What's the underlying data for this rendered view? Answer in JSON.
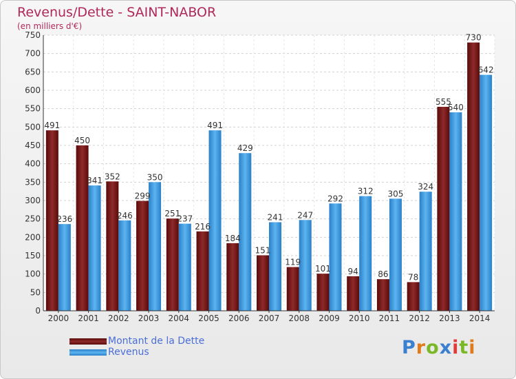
{
  "header": {
    "title": "Revenus/Dette - SAINT-NABOR",
    "subtitle": "(en milliers d'€)"
  },
  "legend": {
    "items": [
      {
        "label": "Montant de la Dette",
        "color": "#7a1010"
      },
      {
        "label": "Revenus",
        "color": "#3a9ae0"
      }
    ]
  },
  "logo": {
    "text": "Proxiti"
  },
  "chart_data": {
    "type": "bar",
    "title": "Revenus/Dette - SAINT-NABOR",
    "ylabel": "(en milliers d'€)",
    "ylim": [
      0,
      750
    ],
    "yticks": [
      0,
      50,
      100,
      150,
      200,
      250,
      300,
      350,
      400,
      450,
      500,
      550,
      600,
      650,
      700,
      750
    ],
    "grid": true,
    "legend_position": "bottom-left",
    "categories": [
      "2000",
      "2001",
      "2002",
      "2003",
      "2004",
      "2005",
      "2006",
      "2007",
      "2008",
      "2009",
      "2010",
      "2011",
      "2012",
      "2013",
      "2014"
    ],
    "series": [
      {
        "name": "Montant de la Dette",
        "color": "#7a1010",
        "values": [
          491,
          450,
          352,
          299,
          251,
          216,
          184,
          151,
          119,
          101,
          94,
          86,
          78,
          555,
          730
        ],
        "labels": [
          "491",
          "450",
          "352",
          "299",
          "251",
          "216",
          "184",
          "151",
          "119",
          "101",
          "94",
          "86",
          "78",
          "555",
          "730"
        ]
      },
      {
        "name": "Revenus",
        "color": "#3a9ae0",
        "values": [
          236,
          341,
          246,
          350,
          237,
          491,
          429,
          241,
          247,
          292,
          312,
          305,
          324,
          540,
          642
        ],
        "labels": [
          "236",
          "341",
          "246",
          "350",
          "237",
          "491",
          "429",
          "241",
          "247",
          "292",
          "312",
          "305",
          "324",
          "540",
          "642"
        ]
      }
    ]
  }
}
